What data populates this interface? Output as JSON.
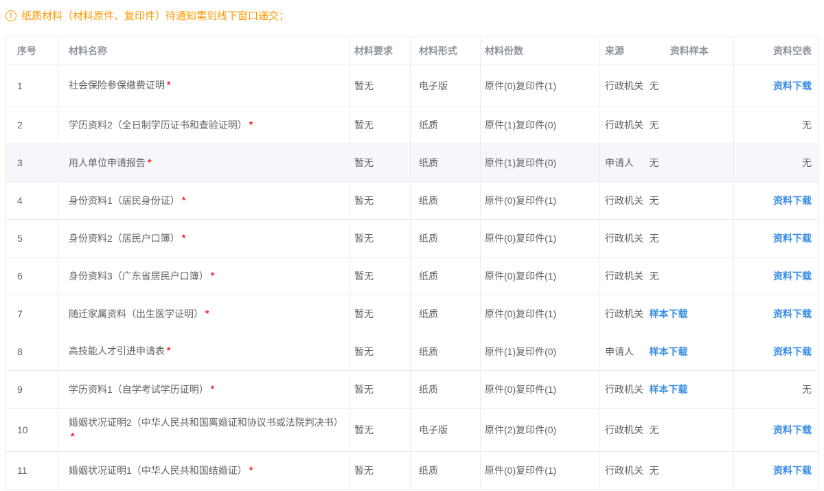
{
  "notice": {
    "icon": "warning-circle-icon",
    "icon_glyph": "!",
    "text": "纸质材料（材料原件、复印件）待通知需到线下窗口递交；",
    "color": "#ff9900"
  },
  "colors": {
    "link_blue": "#3a8ee6",
    "required_red": "#f5222d",
    "header_grey": "#8f959e",
    "body_grey": "#606266",
    "row_highlight": "#f5f7fa",
    "border": "#e8ecf2"
  },
  "table": {
    "columns": [
      "序号",
      "材料名称",
      "材料要求",
      "材料形式",
      "材料份数",
      "来源",
      "资料样本",
      "资料空表"
    ],
    "required_mark": "*",
    "sample_link_label": "样本下载",
    "blank_link_label": "资料下载",
    "none_label": "无",
    "rows": [
      {
        "no": "1",
        "name": "社会保险参保缴费证明",
        "required": true,
        "requirement": "暂无",
        "form": "电子版",
        "copies": "原件(0)复印件(1)",
        "source": "行政机关",
        "sample": {
          "link": false,
          "label": "无"
        },
        "blank": {
          "link": true,
          "label": "资料下载"
        },
        "highlighted": false,
        "merge_below": false
      },
      {
        "no": "2",
        "name": "学历资料2（全日制学历证书和查验证明）",
        "required": true,
        "requirement": "暂无",
        "form": "纸质",
        "copies": "原件(1)复印件(0)",
        "source": "行政机关",
        "sample": {
          "link": false,
          "label": "无"
        },
        "blank": {
          "link": false,
          "label": "无"
        },
        "highlighted": false,
        "merge_below": false
      },
      {
        "no": "3",
        "name": "用人单位申请报告",
        "required": true,
        "requirement": "暂无",
        "form": "纸质",
        "copies": "原件(1)复印件(0)",
        "source": "申请人",
        "sample": {
          "link": false,
          "label": "无"
        },
        "blank": {
          "link": false,
          "label": "无"
        },
        "highlighted": true,
        "merge_below": false
      },
      {
        "no": "4",
        "name": "身份资料1（居民身份证）",
        "required": true,
        "requirement": "暂无",
        "form": "纸质",
        "copies": "原件(0)复印件(1)",
        "source": "行政机关",
        "sample": {
          "link": false,
          "label": "无"
        },
        "blank": {
          "link": true,
          "label": "资料下载"
        },
        "highlighted": false,
        "merge_below": false
      },
      {
        "no": "5",
        "name": "身份资料2（居民户口簿）",
        "required": true,
        "requirement": "暂无",
        "form": "纸质",
        "copies": "原件(0)复印件(1)",
        "source": "行政机关",
        "sample": {
          "link": false,
          "label": "无"
        },
        "blank": {
          "link": true,
          "label": "资料下载"
        },
        "highlighted": false,
        "merge_below": false
      },
      {
        "no": "6",
        "name": "身份资料3（广东省居民户口簿）",
        "required": true,
        "requirement": "暂无",
        "form": "纸质",
        "copies": "原件(0)复印件(1)",
        "source": "行政机关",
        "sample": {
          "link": false,
          "label": "无"
        },
        "blank": {
          "link": true,
          "label": "资料下载"
        },
        "highlighted": false,
        "merge_below": false
      },
      {
        "no": "7",
        "name": "随迁家属资料（出生医学证明）",
        "required": true,
        "requirement": "暂无",
        "form": "纸质",
        "copies": "原件(0)复印件(1)",
        "source": "行政机关",
        "sample": {
          "link": true,
          "label": "样本下载"
        },
        "blank": {
          "link": true,
          "label": "资料下载"
        },
        "highlighted": false,
        "merge_below": true
      },
      {
        "no": "8",
        "name": "高技能人才引进申请表",
        "required": true,
        "requirement": "暂无",
        "form": "纸质",
        "copies": "原件(1)复印件(0)",
        "source": "申请人",
        "sample": {
          "link": true,
          "label": "样本下载"
        },
        "blank": {
          "link": true,
          "label": "资料下载"
        },
        "highlighted": false,
        "merge_below": false
      },
      {
        "no": "9",
        "name": "学历资料1（自学考试学历证明）",
        "required": true,
        "requirement": "暂无",
        "form": "纸质",
        "copies": "原件(0)复印件(1)",
        "source": "行政机关",
        "sample": {
          "link": true,
          "label": "样本下载"
        },
        "blank": {
          "link": false,
          "label": "无"
        },
        "highlighted": false,
        "merge_below": false
      },
      {
        "no": "10",
        "name": "婚姻状况证明2（中华人民共和国离婚证和协议书或法院判决书）",
        "required": true,
        "requirement": "暂无",
        "form": "电子版",
        "copies": "原件(2)复印件(0)",
        "source": "行政机关",
        "sample": {
          "link": false,
          "label": "无"
        },
        "blank": {
          "link": true,
          "label": "资料下载"
        },
        "highlighted": false,
        "merge_below": false
      },
      {
        "no": "11",
        "name": "婚姻状况证明1（中华人民共和国结婚证）",
        "required": true,
        "requirement": "暂无",
        "form": "纸质",
        "copies": "原件(0)复印件(1)",
        "source": "行政机关",
        "sample": {
          "link": false,
          "label": "无"
        },
        "blank": {
          "link": true,
          "label": "资料下载"
        },
        "highlighted": false,
        "merge_below": false
      }
    ]
  }
}
